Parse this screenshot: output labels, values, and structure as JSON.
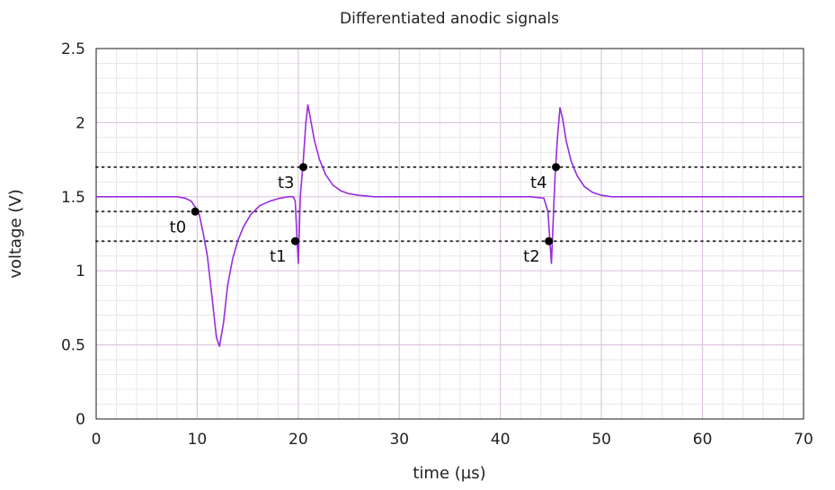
{
  "chart_data": {
    "type": "line",
    "title": "Differentiated anodic signals",
    "xlabel": "time (µs)",
    "ylabel": "voltage (V)",
    "xlim": [
      0,
      70
    ],
    "ylim": [
      0,
      2.5
    ],
    "x_ticks": [
      0,
      10,
      20,
      30,
      40,
      50,
      60,
      70
    ],
    "x_tick_labels": [
      "0",
      "10",
      "20",
      "30",
      "40",
      "50",
      "60",
      "70"
    ],
    "y_ticks": [
      0,
      0.5,
      1,
      1.5,
      2,
      2.5
    ],
    "y_tick_labels": [
      "0",
      "0.5",
      "1",
      "1.5",
      "2",
      "2.5"
    ],
    "grid": true,
    "line_color": "#9a2be0",
    "threshold_lines": [
      1.7,
      1.4,
      1.2
    ],
    "series": [
      {
        "x": [
          0,
          2,
          4,
          6,
          8,
          8.8,
          9.4,
          9.8,
          10.2,
          10.6,
          11.0,
          11.5,
          11.9,
          12.2,
          12.6,
          13.0,
          13.5,
          14.0,
          14.6,
          15.3,
          16.2,
          17.2,
          18.2,
          19.0,
          19.5,
          19.7,
          19.85,
          20.0,
          20.2,
          20.5,
          20.75,
          20.95,
          21.2,
          21.6,
          22.1,
          22.7,
          23.4,
          24.2,
          25.0,
          26.0,
          27.5,
          30,
          35,
          40,
          43,
          44.3,
          44.7,
          44.9,
          45.05,
          45.2,
          45.4,
          45.65,
          45.9,
          46.15,
          46.5,
          47.0,
          47.6,
          48.3,
          49.1,
          50.0,
          51.0,
          52.5,
          55,
          60,
          65,
          70
        ],
        "y": [
          1.5,
          1.5,
          1.5,
          1.5,
          1.5,
          1.49,
          1.47,
          1.43,
          1.38,
          1.25,
          1.1,
          0.8,
          0.55,
          0.49,
          0.65,
          0.9,
          1.08,
          1.2,
          1.3,
          1.38,
          1.44,
          1.47,
          1.49,
          1.5,
          1.5,
          1.47,
          1.25,
          1.05,
          1.5,
          1.75,
          2.0,
          2.12,
          2.03,
          1.88,
          1.75,
          1.65,
          1.58,
          1.54,
          1.52,
          1.51,
          1.5,
          1.5,
          1.5,
          1.5,
          1.5,
          1.49,
          1.4,
          1.2,
          1.05,
          1.3,
          1.62,
          1.9,
          2.1,
          2.03,
          1.88,
          1.74,
          1.64,
          1.57,
          1.53,
          1.51,
          1.5,
          1.5,
          1.5,
          1.5,
          1.5,
          1.5
        ]
      }
    ],
    "markers": [
      {
        "label": "t0",
        "x": 9.8,
        "y": 1.4
      },
      {
        "label": "t1",
        "x": 19.7,
        "y": 1.2
      },
      {
        "label": "t3",
        "x": 20.5,
        "y": 1.7
      },
      {
        "label": "t2",
        "x": 44.8,
        "y": 1.2
      },
      {
        "label": "t4",
        "x": 45.5,
        "y": 1.7
      }
    ]
  }
}
